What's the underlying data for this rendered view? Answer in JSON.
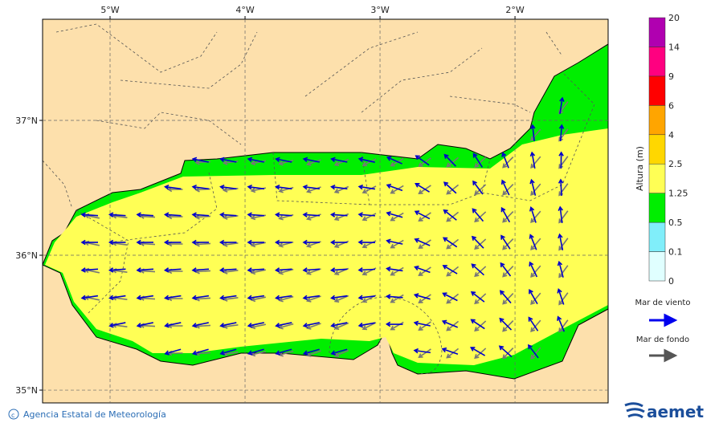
{
  "map": {
    "xlim": [
      -5.5,
      -1.31
    ],
    "ylim": [
      34.905,
      37.75
    ],
    "xticks": [
      {
        "value": -5,
        "label": "5°W"
      },
      {
        "value": -4,
        "label": "4°W"
      },
      {
        "value": -3,
        "label": "3°W"
      },
      {
        "value": -2,
        "label": "2°W"
      }
    ],
    "yticks": [
      {
        "value": 35,
        "label": "35°N"
      },
      {
        "value": 36,
        "label": "36°N"
      },
      {
        "value": 37,
        "label": "37°N"
      }
    ]
  },
  "legend": {
    "title": "Altura (m)",
    "levels": [
      0,
      0.1,
      0.5,
      1.25,
      2.5,
      4,
      6,
      9,
      14,
      20
    ],
    "colors": [
      "#e0ffff",
      "#80eefa",
      "#00ee00",
      "#ffff55",
      "#ffd700",
      "#ffa500",
      "#ff0000",
      "#ff0080",
      "#b000b0"
    ],
    "wind_sea": "Mar de viento",
    "swell": "Mar de fondo"
  },
  "footer": {
    "agency": "Agencia Estatal de Meteorología",
    "logo": "aemet"
  }
}
